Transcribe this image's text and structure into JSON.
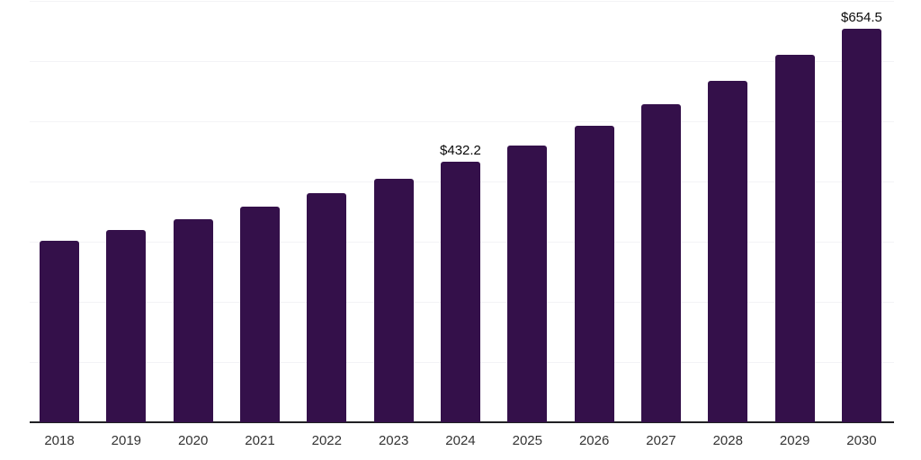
{
  "chart_data": {
    "type": "bar",
    "title": "",
    "xlabel": "",
    "ylabel": "",
    "categories": [
      "2018",
      "2019",
      "2020",
      "2021",
      "2022",
      "2023",
      "2024",
      "2025",
      "2026",
      "2027",
      "2028",
      "2029",
      "2030"
    ],
    "values": [
      302,
      319,
      338,
      359,
      381,
      405,
      432.2,
      460,
      492,
      528,
      567,
      610,
      654.5
    ],
    "value_labels": {
      "2024": "$432.2",
      "2030": "$654.5"
    },
    "ylim": [
      0,
      700
    ],
    "grid_interval": 100,
    "grid": true,
    "legend": false,
    "colors": {
      "bar": "#34104a",
      "gridline": "#f3f3f6",
      "axis_line": "#202024",
      "value_label": "#0a0a0a",
      "tick_label": "#333333",
      "background": "#ffffff"
    }
  }
}
